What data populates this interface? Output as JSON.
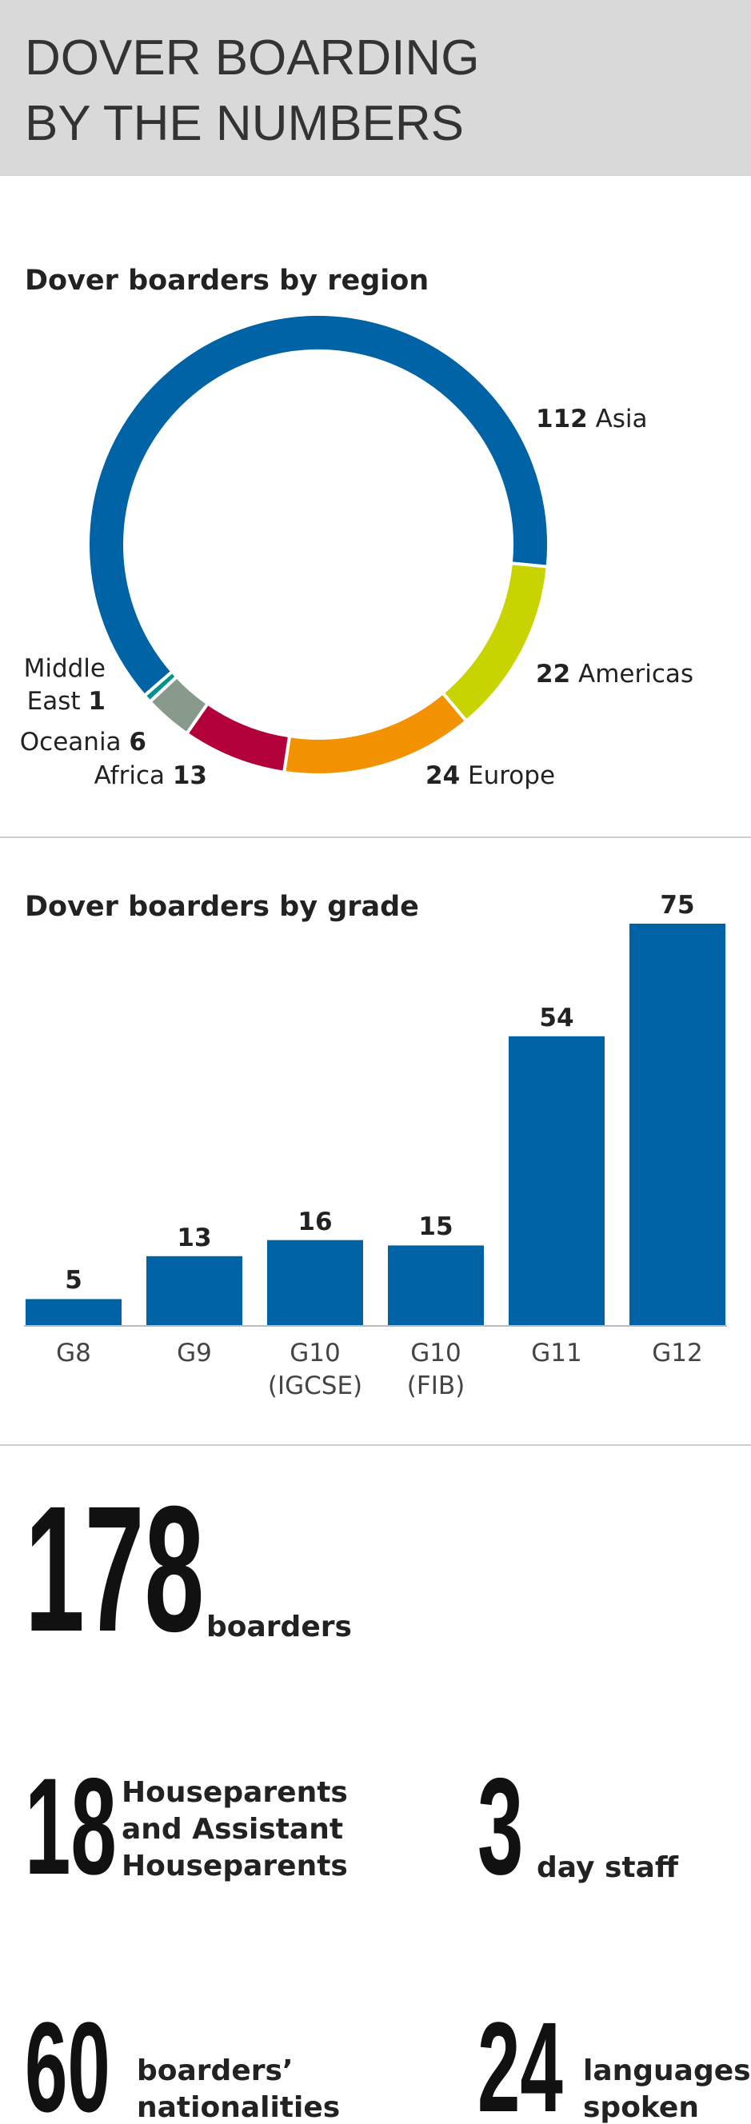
{
  "header": {
    "title_lines": [
      "DOVER BOARDING",
      "BY THE NUMBERS"
    ]
  },
  "chart_data": [
    {
      "type": "donut",
      "title": "Dover boarders by region",
      "categories": [
        "Asia",
        "Americas",
        "Europe",
        "Africa",
        "Oceania",
        "Middle East"
      ],
      "values": [
        112,
        22,
        24,
        13,
        6,
        1
      ],
      "colors": [
        "#0063a6",
        "#c8d400",
        "#f39200",
        "#b2003a",
        "#889a8c",
        "#00928f"
      ]
    },
    {
      "type": "bar",
      "title": "Dover boarders by grade",
      "categories": [
        "G8",
        "G9",
        "G10 (IGCSE)",
        "G10 (FIB)",
        "G11",
        "G12"
      ],
      "values": [
        5,
        13,
        16,
        15,
        54,
        75
      ],
      "color": "#0063a6",
      "ylim": [
        0,
        75
      ]
    }
  ],
  "stats": [
    {
      "number": "178",
      "label": "boarders"
    },
    {
      "number": "18",
      "label": "Houseparents and Assistant Houseparents"
    },
    {
      "number": "3",
      "label": "day staff"
    },
    {
      "number": "60",
      "label": "boarders’ nationalities"
    },
    {
      "number": "24",
      "label": "languages spoken"
    }
  ]
}
